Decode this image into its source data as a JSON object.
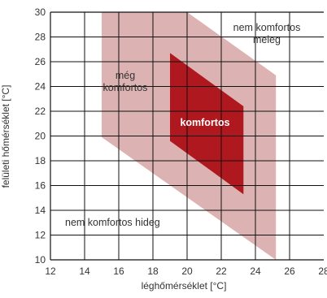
{
  "chart_data": {
    "type": "area",
    "title": "",
    "xlabel": "léghőmérséklet [°C]",
    "ylabel": "felületi hőmérséklet [°C]",
    "xlim": [
      12,
      28
    ],
    "ylim": [
      10,
      30
    ],
    "xticks": [
      "12",
      "14",
      "16",
      "18",
      "20",
      "22",
      "24",
      "26",
      "28"
    ],
    "yticks": [
      "10",
      "12",
      "14",
      "16",
      "18",
      "20",
      "22",
      "24",
      "26",
      "28",
      "30"
    ],
    "grid": true,
    "regions": [
      {
        "name": "még komfortos",
        "label_lines": [
          "még",
          "komfortos"
        ],
        "color": "#ddb2b2",
        "polygon": [
          [
            15.0,
            30.0
          ],
          [
            20.0,
            30.0
          ],
          [
            25.2,
            24.9
          ],
          [
            25.2,
            10.0
          ],
          [
            15.0,
            19.9
          ]
        ]
      },
      {
        "name": "komfortos",
        "label_lines": [
          "komfortos"
        ],
        "color": "#b0181f",
        "polygon": [
          [
            19.0,
            26.7
          ],
          [
            23.3,
            22.4
          ],
          [
            23.3,
            15.3
          ],
          [
            19.0,
            19.6
          ]
        ]
      }
    ],
    "zones": [
      {
        "name": "nem komfortos meleg",
        "label_lines": [
          "nem komfortos",
          "meleg"
        ]
      },
      {
        "name": "nem komfortos hideg",
        "label_lines": [
          "nem komfortos hideg"
        ]
      }
    ]
  }
}
